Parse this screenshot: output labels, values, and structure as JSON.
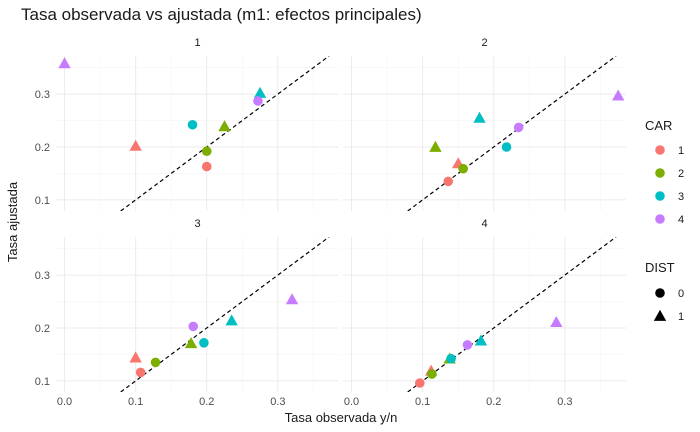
{
  "chart_data": {
    "type": "scatter",
    "title": "Tasa observada vs ajustada (m1: efectos principales)",
    "xlabel": "Tasa observada y/n",
    "ylabel": "Tasa ajustada",
    "xlim": [
      -0.012,
      0.386
    ],
    "ylim": [
      0.079,
      0.372
    ],
    "x_ticks": [
      0.0,
      0.1,
      0.2,
      0.3
    ],
    "x_tick_labels": [
      "0.0",
      "0.1",
      "0.2",
      "0.3"
    ],
    "y_ticks": [
      0.1,
      0.2,
      0.3
    ],
    "y_tick_labels": [
      "0.1",
      "0.2",
      "0.3"
    ],
    "grid": true,
    "reference_line": "y = x",
    "legend_position": "right",
    "color_legend": {
      "title": "CAR",
      "entries": [
        {
          "label": "1",
          "color": "#F8766D"
        },
        {
          "label": "2",
          "color": "#7CAE00"
        },
        {
          "label": "3",
          "color": "#00BFC4"
        },
        {
          "label": "4",
          "color": "#C77CFF"
        }
      ]
    },
    "shape_legend": {
      "title": "DIST",
      "entries": [
        {
          "label": "0",
          "shape": "circle"
        },
        {
          "label": "1",
          "shape": "triangle"
        }
      ]
    },
    "panels": [
      {
        "label": "1",
        "points": [
          {
            "car": "1",
            "dist": "1",
            "x": 0.1,
            "y": 0.202
          },
          {
            "car": "1",
            "dist": "0",
            "x": 0.2,
            "y": 0.163
          },
          {
            "car": "2",
            "dist": "0",
            "x": 0.2,
            "y": 0.192
          },
          {
            "car": "2",
            "dist": "1",
            "x": 0.225,
            "y": 0.239
          },
          {
            "car": "3",
            "dist": "0",
            "x": 0.18,
            "y": 0.242
          },
          {
            "car": "3",
            "dist": "1",
            "x": 0.275,
            "y": 0.302
          },
          {
            "car": "4",
            "dist": "0",
            "x": 0.272,
            "y": 0.287
          },
          {
            "car": "4",
            "dist": "1",
            "x": 0.0,
            "y": 0.358
          }
        ]
      },
      {
        "label": "2",
        "points": [
          {
            "car": "1",
            "dist": "0",
            "x": 0.136,
            "y": 0.135
          },
          {
            "car": "1",
            "dist": "1",
            "x": 0.15,
            "y": 0.169
          },
          {
            "car": "2",
            "dist": "0",
            "x": 0.157,
            "y": 0.159
          },
          {
            "car": "2",
            "dist": "1",
            "x": 0.118,
            "y": 0.2
          },
          {
            "car": "3",
            "dist": "0",
            "x": 0.218,
            "y": 0.2
          },
          {
            "car": "3",
            "dist": "1",
            "x": 0.18,
            "y": 0.255
          },
          {
            "car": "4",
            "dist": "0",
            "x": 0.235,
            "y": 0.237
          },
          {
            "car": "4",
            "dist": "1",
            "x": 0.375,
            "y": 0.297
          }
        ]
      },
      {
        "label": "3",
        "points": [
          {
            "car": "1",
            "dist": "1",
            "x": 0.1,
            "y": 0.144
          },
          {
            "car": "1",
            "dist": "0",
            "x": 0.107,
            "y": 0.116
          },
          {
            "car": "2",
            "dist": "0",
            "x": 0.128,
            "y": 0.135
          },
          {
            "car": "2",
            "dist": "1",
            "x": 0.178,
            "y": 0.171
          },
          {
            "car": "3",
            "dist": "0",
            "x": 0.196,
            "y": 0.172
          },
          {
            "car": "3",
            "dist": "1",
            "x": 0.235,
            "y": 0.214
          },
          {
            "car": "4",
            "dist": "0",
            "x": 0.181,
            "y": 0.203
          },
          {
            "car": "4",
            "dist": "1",
            "x": 0.32,
            "y": 0.254
          }
        ]
      },
      {
        "label": "4",
        "points": [
          {
            "car": "1",
            "dist": "0",
            "x": 0.096,
            "y": 0.096
          },
          {
            "car": "1",
            "dist": "1",
            "x": 0.112,
            "y": 0.119
          },
          {
            "car": "2",
            "dist": "0",
            "x": 0.113,
            "y": 0.113
          },
          {
            "car": "2",
            "dist": "1",
            "x": 0.138,
            "y": 0.142
          },
          {
            "car": "3",
            "dist": "0",
            "x": 0.14,
            "y": 0.142
          },
          {
            "car": "3",
            "dist": "1",
            "x": 0.182,
            "y": 0.176
          },
          {
            "car": "4",
            "dist": "0",
            "x": 0.163,
            "y": 0.168
          },
          {
            "car": "4",
            "dist": "1",
            "x": 0.288,
            "y": 0.211
          }
        ]
      }
    ]
  }
}
